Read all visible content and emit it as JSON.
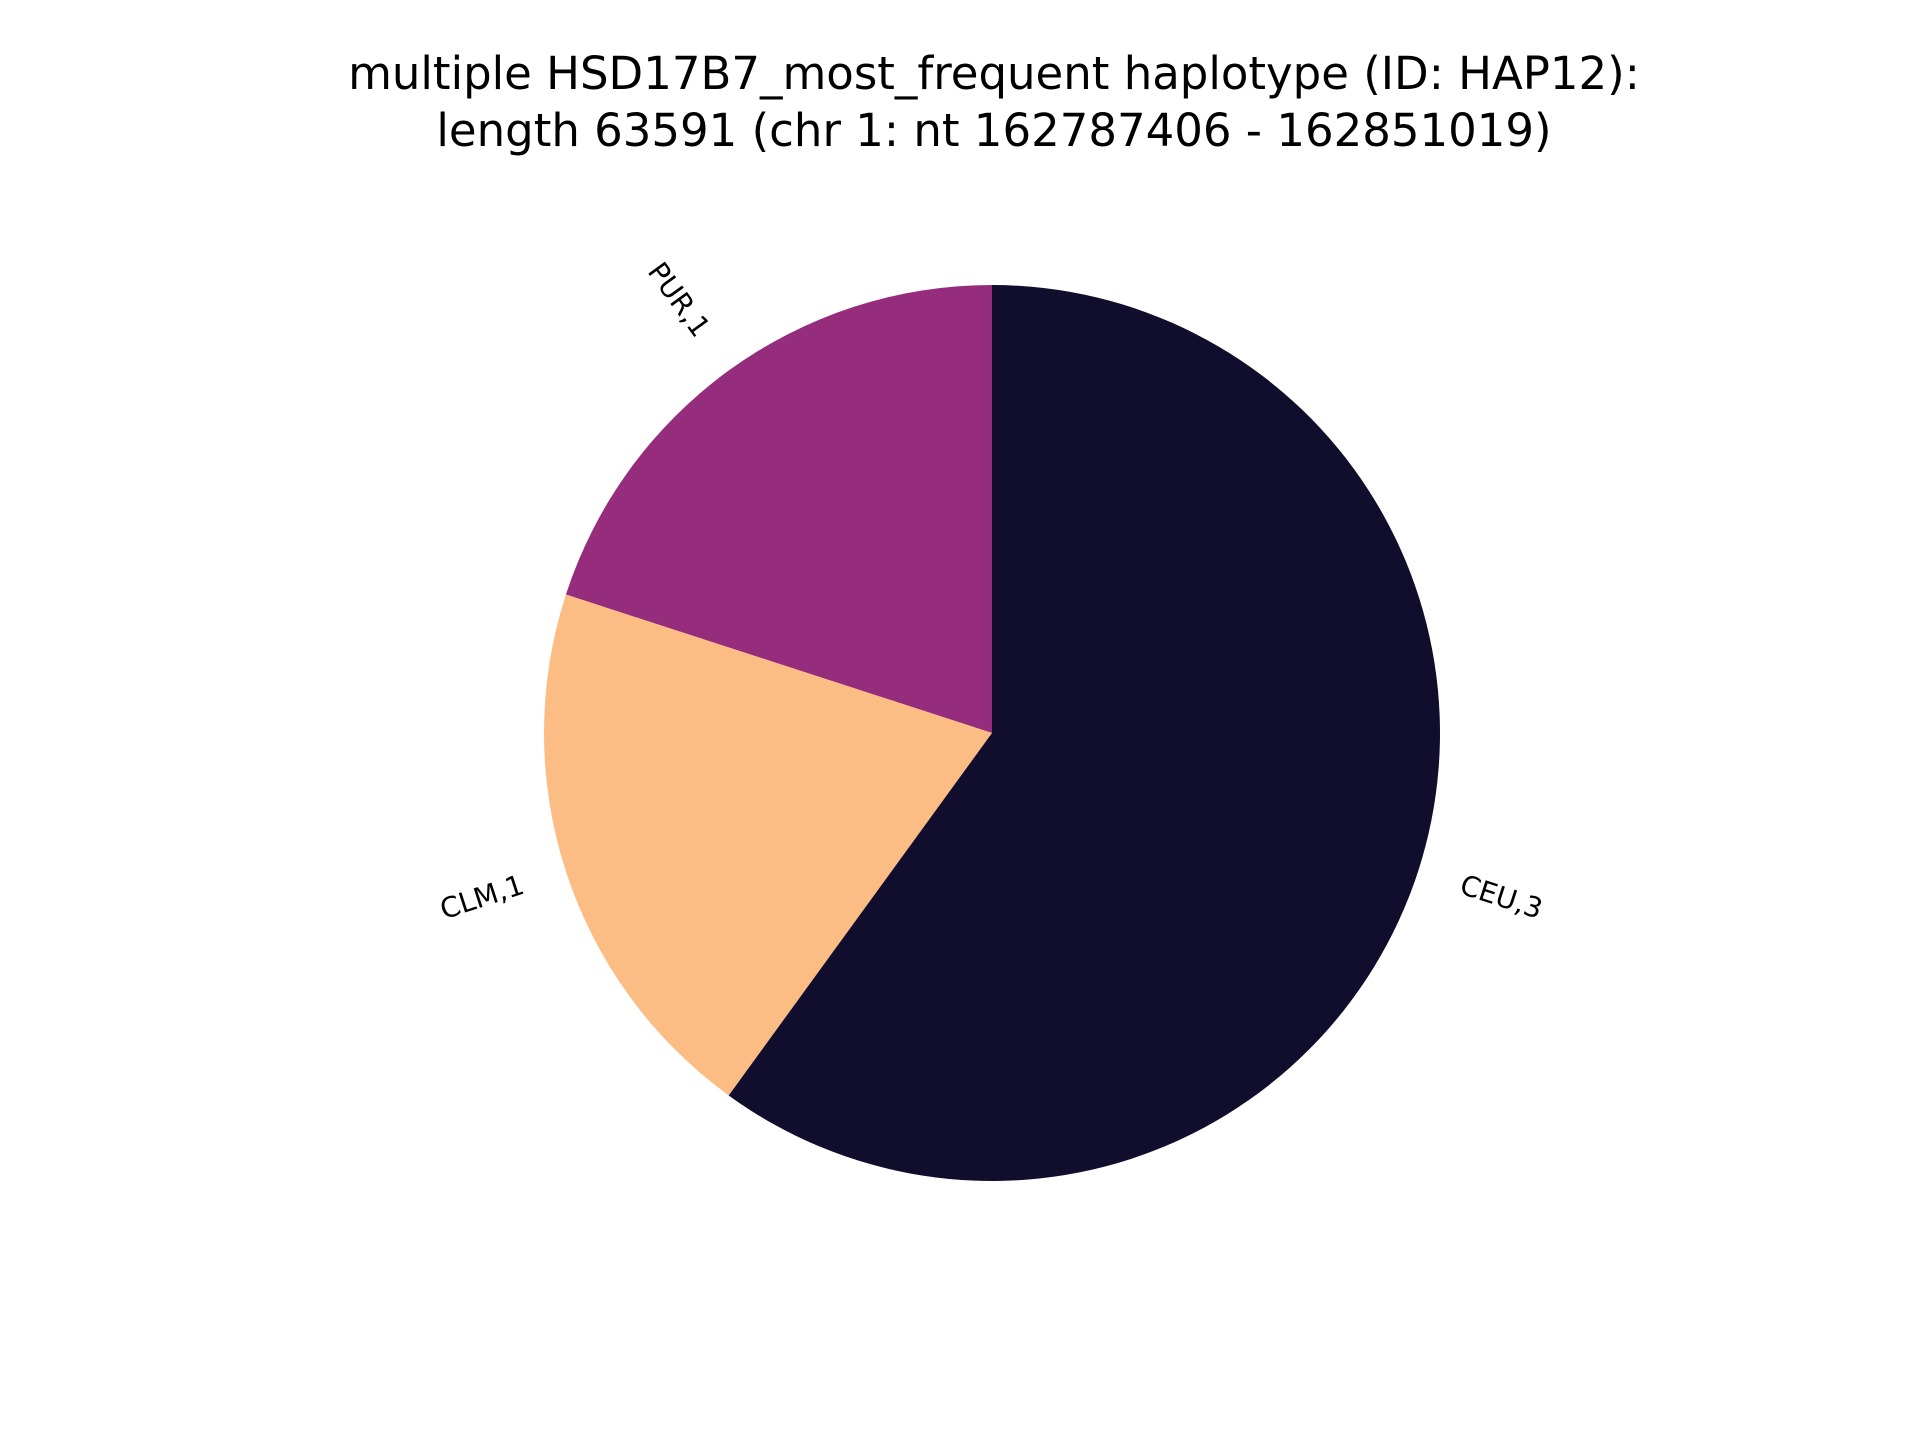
{
  "chart_data": {
    "type": "pie",
    "title": "multiple HSD17B7_most_frequent haplotype (ID: HAP12):\nlength 63591 (chr 1: nt 162787406 - 162851019)",
    "title_lines": [
      "multiple HSD17B7_most_frequent haplotype (ID: HAP12):",
      "length 63591 (chr 1: nt 162787406 - 162851019)"
    ],
    "start_angle_deg": 90,
    "direction": "counterclockwise",
    "slices": [
      {
        "label": "PUR,1",
        "value": 1,
        "color": "#962d7c"
      },
      {
        "label": "CLM,1",
        "value": 1,
        "color": "#fcbd84"
      },
      {
        "label": "CEU,3",
        "value": 3,
        "color": "#110d2d"
      }
    ]
  }
}
